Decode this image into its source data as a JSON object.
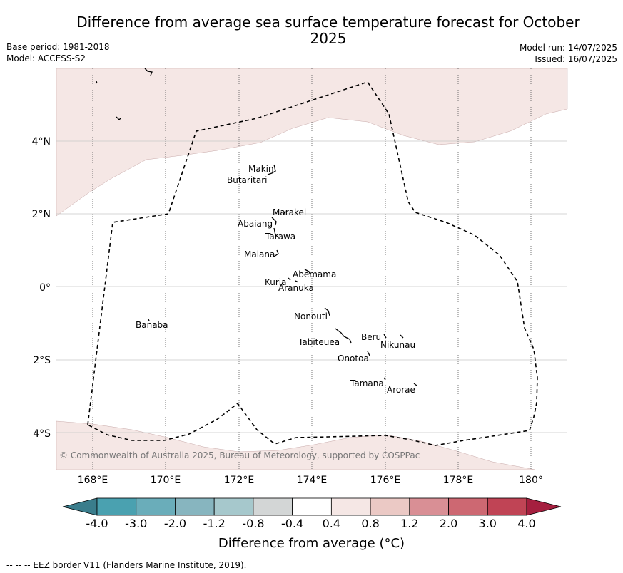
{
  "title": "Difference from average sea surface temperature forecast for October 2025",
  "meta_left": {
    "base_period": "Base period: 1981-2018",
    "model": "Model: ACCESS-S2"
  },
  "meta_right": {
    "model_run": "Model run: 14/07/2025",
    "issued": "Issued: 16/07/2025"
  },
  "map": {
    "lon_labels": [
      "168°E",
      "170°E",
      "172°E",
      "174°E",
      "176°E",
      "178°E",
      "180°"
    ],
    "lat_labels": [
      "4°N",
      "2°N",
      "0°",
      "2°S",
      "4°S"
    ],
    "islands": [
      "Makin",
      "Butaritari",
      "Marakei",
      "Abaiang",
      "Tarawa",
      "Maiana",
      "Abemama",
      "Kuria",
      "Aranuka",
      "Nonouti",
      "Banaba",
      "Beru",
      "Nikunau",
      "Tabiteuea",
      "Onotoa",
      "Tamana",
      "Arorae"
    ],
    "anomaly_class_north": "0.4 to 0.8",
    "anomaly_class_south": "0.4 to 0.8",
    "copyright": "© Commonwealth of Australia 2025, Bureau of Meteorology, supported by COSPPac"
  },
  "colorbar": {
    "ticks": [
      "-4.0",
      "-3.0",
      "-2.0",
      "-1.2",
      "-0.8",
      "-0.4",
      "0.4",
      "0.8",
      "1.2",
      "2.0",
      "3.0",
      "4.0"
    ],
    "colors": [
      "#3a7d8c",
      "#4aa1b0",
      "#6aadba",
      "#87b5bf",
      "#a6c8cc",
      "#d3d6d6",
      "#ffffff",
      "#f5e7e5",
      "#ebc9c5",
      "#d98f95",
      "#cd6872",
      "#c04455",
      "#a51f3f"
    ],
    "label": "Difference from average (°C)"
  },
  "eez_note": "--  --  -- EEZ border V11 (Flanders Marine Institute, 2019)."
}
